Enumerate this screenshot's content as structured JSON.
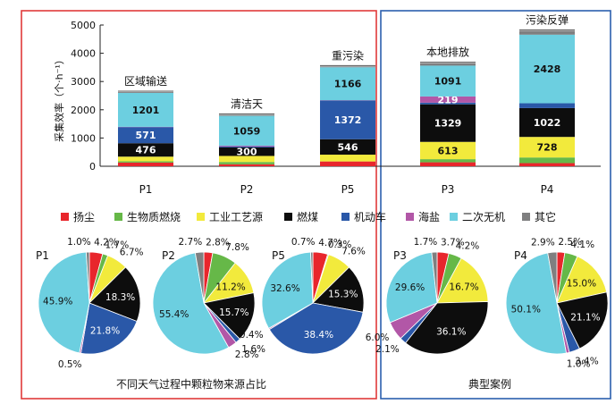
{
  "chart_data": [
    {
      "type": "bar",
      "stacked": true,
      "ylabel": "采集效率（个·h⁻¹）",
      "ylim": [
        0,
        5000
      ],
      "yticks": [
        0,
        1000,
        2000,
        3000,
        4000,
        5000
      ],
      "grid": false,
      "categories": [
        "P1",
        "P2",
        "P5",
        "P3",
        "P4"
      ],
      "bar_titles": [
        "区域输送",
        "清洁天",
        "重污染",
        "本地排放",
        "污染反弹"
      ],
      "series": [
        {
          "name": "扬尘",
          "values": [
            130,
            70,
            170,
            140,
            110
          ]
        },
        {
          "name": "生物质燃烧",
          "values": [
            45,
            80,
            0,
            110,
            200
          ]
        },
        {
          "name": "工业工艺源",
          "values": [
            165,
            215,
            240,
            613,
            728
          ]
        },
        {
          "name": "燃煤",
          "values": [
            476,
            300,
            546,
            1329,
            1022
          ]
        },
        {
          "name": "机动车",
          "values": [
            571,
            30,
            1372,
            60,
            170
          ]
        },
        {
          "name": "海盐",
          "values": [
            10,
            30,
            10,
            219,
            0
          ]
        },
        {
          "name": "二次无机",
          "values": [
            1201,
            1059,
            1166,
            1091,
            2428
          ]
        },
        {
          "name": "其它",
          "values": [
            30,
            40,
            30,
            90,
            140
          ]
        }
      ],
      "data_labels": {
        "燃煤": [
          "476",
          "300",
          "546",
          "1329",
          "1022"
        ],
        "机动车": [
          "571",
          "",
          "1372",
          "",
          ""
        ],
        "海盐": [
          "",
          "",
          "",
          "219",
          ""
        ],
        "二次无机": [
          "1201",
          "1059",
          "1166",
          "1091",
          "2428"
        ],
        "工业工艺源": [
          "",
          "",
          "",
          "613",
          "728"
        ]
      }
    },
    {
      "type": "pie",
      "title": "P1",
      "labels": [
        "扬尘",
        "生物质燃烧",
        "工业工艺源",
        "燃煤",
        "机动车",
        "海盐",
        "二次无机",
        "其它"
      ],
      "values": [
        4.2,
        1.7,
        6.7,
        18.3,
        21.8,
        0.5,
        45.9,
        1.0
      ],
      "value_labels": [
        "4.2%",
        "1.7%",
        "6.7%",
        "18.3%",
        "21.8%",
        "0.5%",
        "45.9%",
        "1.0%"
      ]
    },
    {
      "type": "pie",
      "title": "P2",
      "labels": [
        "扬尘",
        "生物质燃烧",
        "工业工艺源",
        "燃煤",
        "机动车",
        "海盐",
        "二次无机",
        "其它"
      ],
      "values": [
        2.8,
        7.8,
        11.2,
        15.7,
        1.6,
        2.8,
        55.4,
        2.7
      ],
      "value_labels": [
        "2.8%",
        "7.8%",
        "11.2%",
        "15.7%",
        "1.6%",
        "2.8%",
        "55.4%",
        "2.7%"
      ]
    },
    {
      "type": "pie",
      "title": "P5",
      "labels": [
        "扬尘",
        "生物质燃烧",
        "工业工艺源",
        "燃煤",
        "机动车",
        "海盐",
        "二次无机",
        "其它"
      ],
      "values": [
        4.7,
        0.3,
        7.6,
        15.3,
        38.4,
        0.4,
        32.6,
        0.7
      ],
      "value_labels": [
        "4.7%",
        "0.3%",
        "7.6%",
        "15.3%",
        "38.4%",
        "0.4%",
        "32.6%",
        "0.7%"
      ]
    },
    {
      "type": "pie",
      "title": "P3",
      "labels": [
        "扬尘",
        "生物质燃烧",
        "工业工艺源",
        "燃煤",
        "机动车",
        "海盐",
        "二次无机",
        "其它"
      ],
      "values": [
        3.7,
        4.2,
        16.7,
        36.1,
        2.1,
        6.0,
        29.6,
        1.7
      ],
      "value_labels": [
        "3.7%",
        "4.2%",
        "16.7%",
        "36.1%",
        "2.1%",
        "6.0%",
        "29.6%",
        "1.7%"
      ]
    },
    {
      "type": "pie",
      "title": "P4",
      "labels": [
        "扬尘",
        "生物质燃烧",
        "工业工艺源",
        "燃煤",
        "机动车",
        "海盐",
        "二次无机",
        "其它"
      ],
      "values": [
        2.5,
        4.1,
        15.0,
        21.1,
        3.4,
        1.0,
        50.1,
        2.9
      ],
      "value_labels": [
        "2.5%",
        "4.1%",
        "15.0%",
        "21.1%",
        "3.4%",
        "1.0%",
        "50.1%",
        "2.9%"
      ]
    }
  ],
  "legend": {
    "items": [
      {
        "name": "扬尘",
        "color": "#e8262c"
      },
      {
        "name": "生物质燃烧",
        "color": "#66b848"
      },
      {
        "name": "工业工艺源",
        "color": "#f2ea3c"
      },
      {
        "name": "燃煤",
        "color": "#0d0d0d"
      },
      {
        "name": "机动车",
        "color": "#2a58a8"
      },
      {
        "name": "海盐",
        "color": "#b257a7"
      },
      {
        "name": "二次无机",
        "color": "#6ccfe0"
      },
      {
        "name": "其它",
        "color": "#7f7f80"
      }
    ]
  },
  "captions": {
    "left": "不同天气过程中颗粒物来源占比",
    "right": "典型案例"
  },
  "frame_colors": {
    "left": "#e03a3a",
    "right": "#2b5fae"
  }
}
